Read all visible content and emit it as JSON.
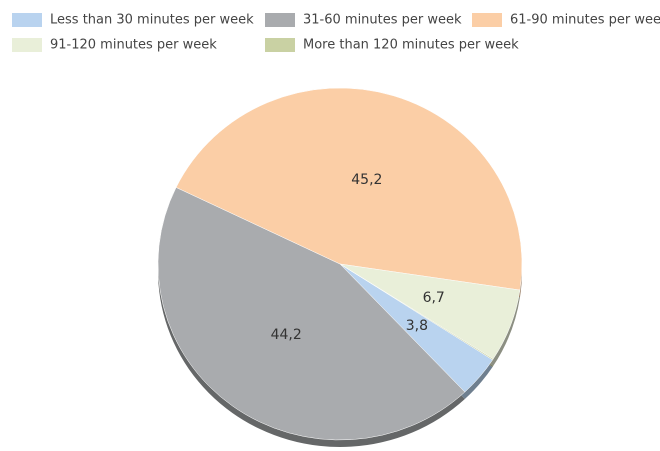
{
  "chart_data": {
    "type": "pie",
    "categories": [
      "Less than 30 minutes per week",
      "31-60 minutes per week",
      "61-90 minutes per week",
      "91-120 minutes per week",
      "More than 120 minutes per week"
    ],
    "values": [
      3.8,
      44.2,
      45.2,
      6.7,
      0.1
    ],
    "value_labels": [
      "3,8",
      "44,2",
      "45,2",
      "6,7",
      null
    ],
    "colors": [
      "#b9d3ef",
      "#a9abae",
      "#fbcea6",
      "#e9efd9",
      "#c9d1a3"
    ],
    "legend": "top"
  }
}
